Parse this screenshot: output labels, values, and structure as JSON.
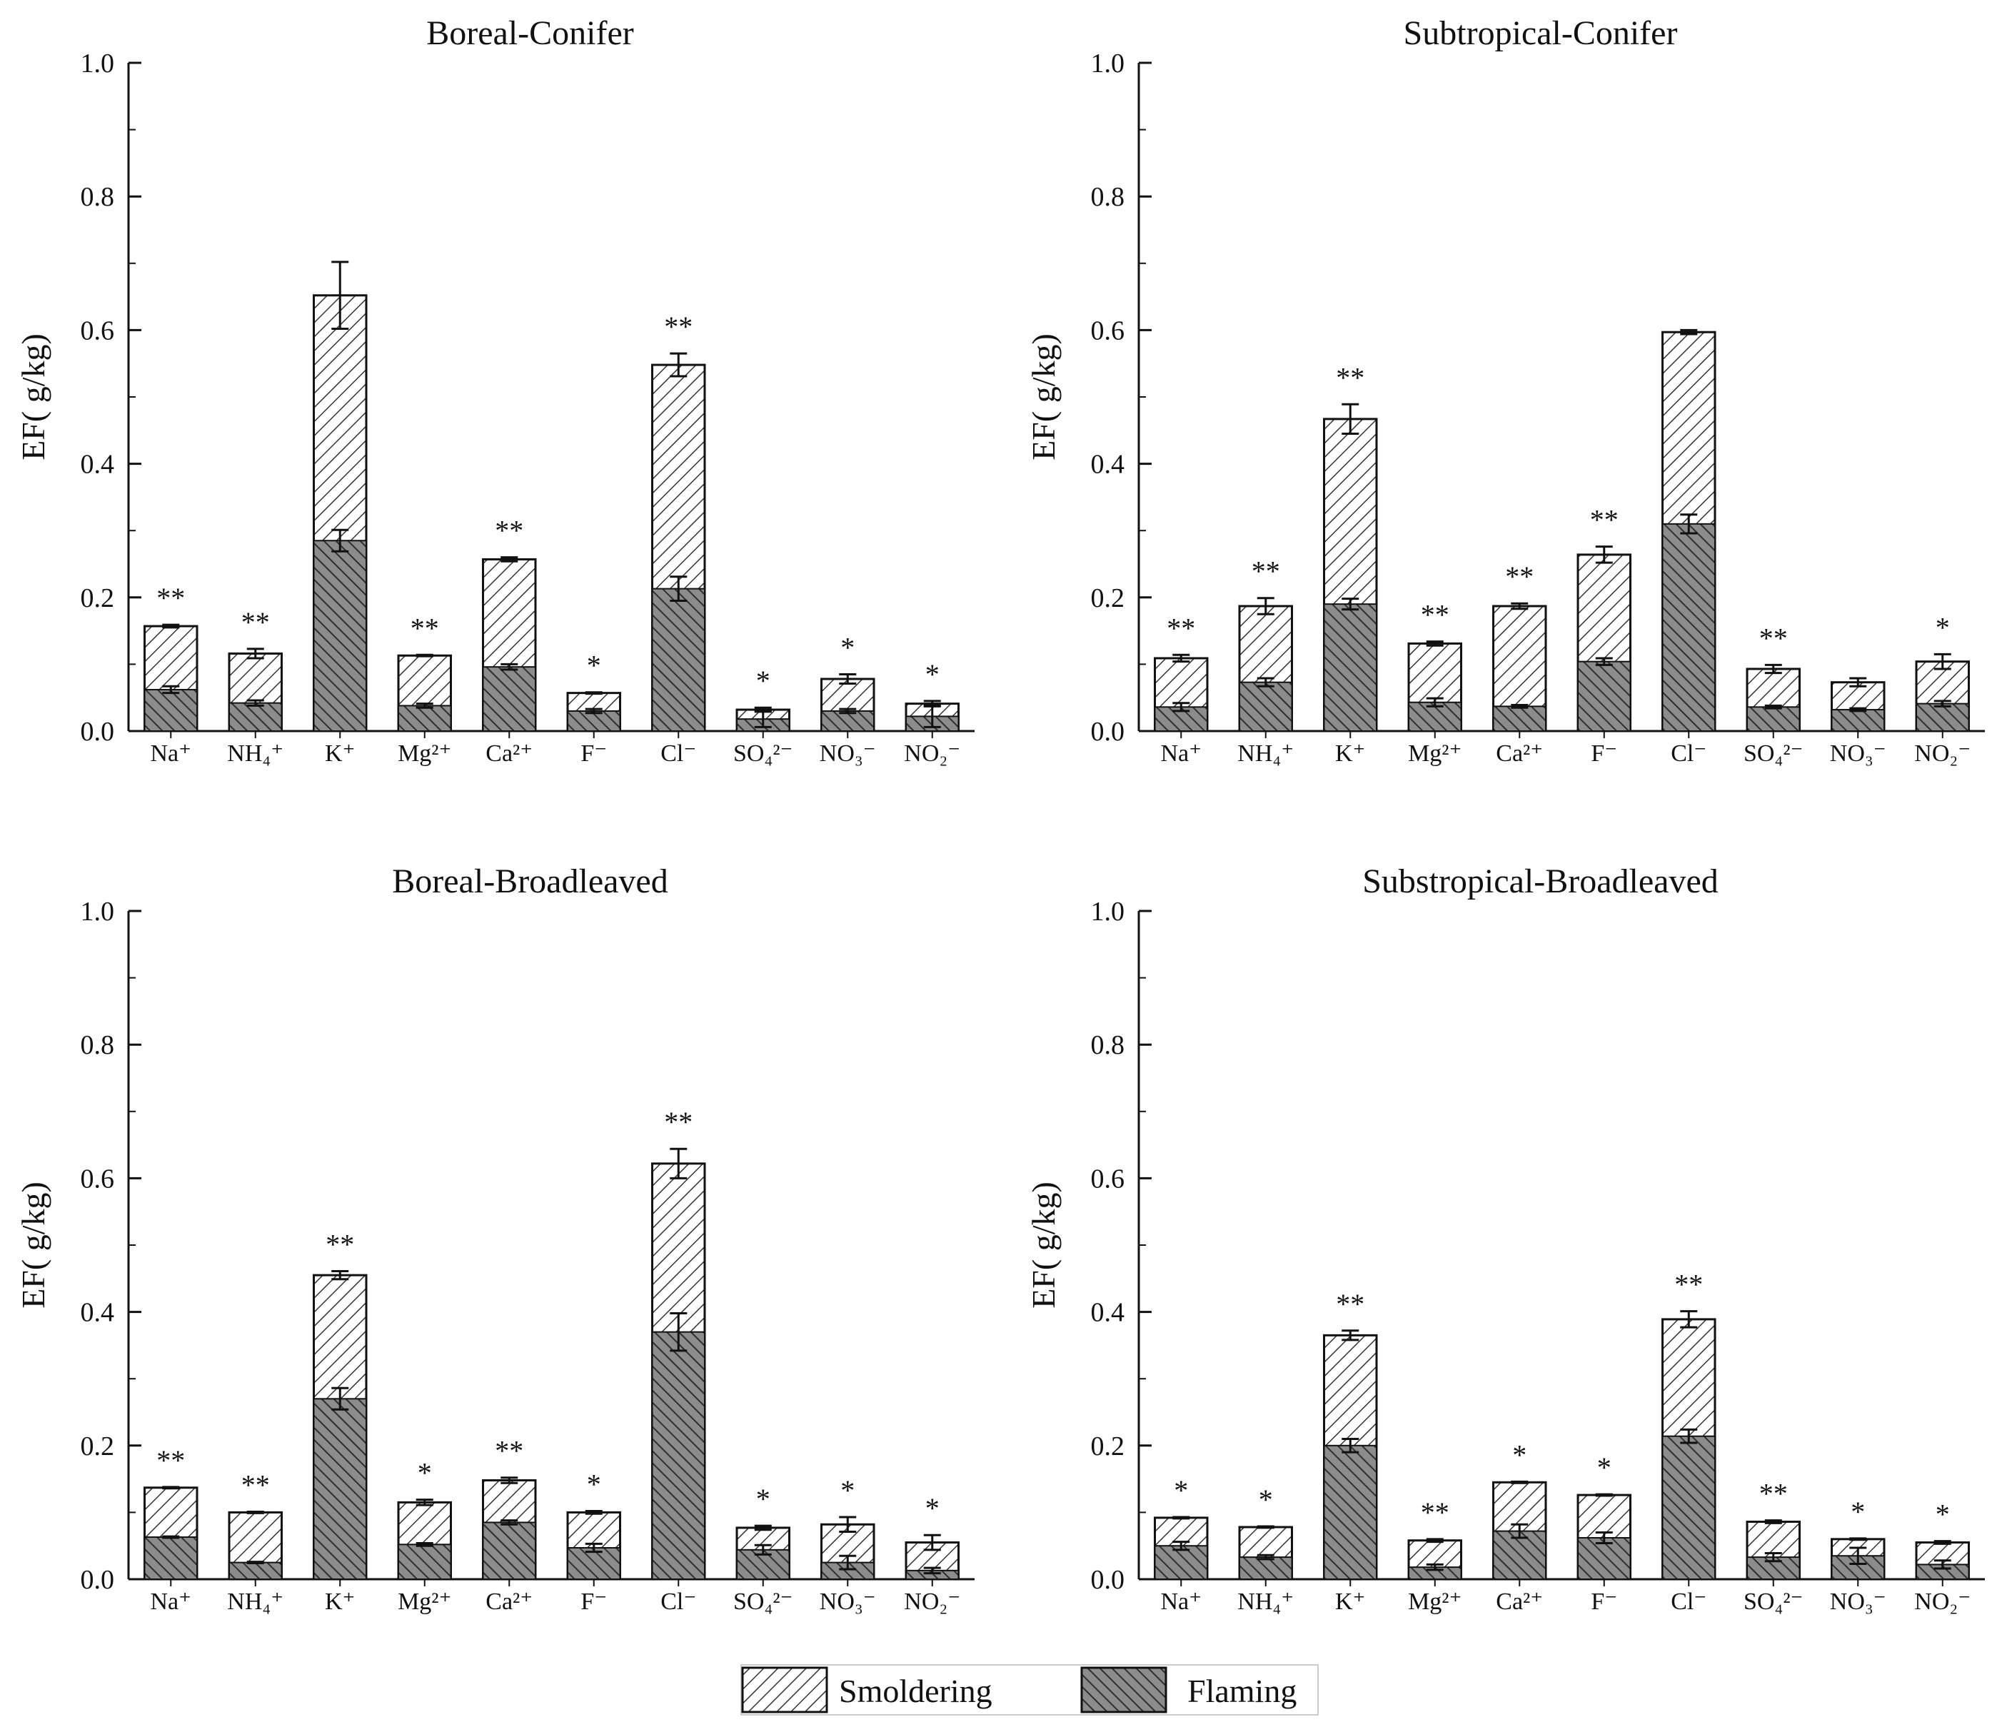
{
  "legend": {
    "smoldering_label": "Smoldering",
    "flaming_label": "Flaming"
  },
  "colors": {
    "axis": "#111111",
    "hatch": "#333333",
    "flaming_bg": "#8c8c8c",
    "smoldering_bg": "#ffffff"
  },
  "chart_data": [
    {
      "type": "bar",
      "stacked": true,
      "title": "Boreal-Conifer",
      "ylabel": "EF( g/kg)",
      "ylim": [
        0,
        1.0
      ],
      "yticks": [
        "0.0",
        "0.2",
        "0.4",
        "0.6",
        "0.8",
        "1.0"
      ],
      "categories": [
        "Na⁺",
        "NH₄⁺",
        "K⁺",
        "Mg²⁺",
        "Ca²⁺",
        "F⁻",
        "Cl⁻",
        "SO₄²⁻",
        "NO₃⁻",
        "NO₂⁻"
      ],
      "series": [
        {
          "name": "Flaming",
          "values": [
            0.062,
            0.042,
            0.285,
            0.038,
            0.096,
            0.03,
            0.213,
            0.018,
            0.03,
            0.022
          ],
          "errors": [
            0.005,
            0.004,
            0.016,
            0.003,
            0.004,
            0.003,
            0.018,
            0.012,
            0.003,
            0.016
          ]
        },
        {
          "name": "Smoldering",
          "values": [
            0.157,
            0.116,
            0.652,
            0.113,
            0.257,
            0.057,
            0.548,
            0.032,
            0.078,
            0.041
          ],
          "errors": [
            0.002,
            0.007,
            0.05,
            0.001,
            0.003,
            0.001,
            0.017,
            0.003,
            0.007,
            0.004
          ]
        }
      ],
      "significance": [
        "**",
        "**",
        "",
        "**",
        "**",
        "*",
        "**",
        "*",
        "*",
        "*"
      ]
    },
    {
      "type": "bar",
      "stacked": true,
      "title": "Subtropical-Conifer",
      "ylabel": "EF( g/kg)",
      "ylim": [
        0,
        1.0
      ],
      "yticks": [
        "0.0",
        "0.2",
        "0.4",
        "0.6",
        "0.8",
        "1.0"
      ],
      "categories": [
        "Na⁺",
        "NH₄⁺",
        "K⁺",
        "Mg²⁺",
        "Ca²⁺",
        "F⁻",
        "Cl⁻",
        "SO₄²⁻",
        "NO₃⁻",
        "NO₂⁻"
      ],
      "series": [
        {
          "name": "Flaming",
          "values": [
            0.036,
            0.073,
            0.19,
            0.043,
            0.037,
            0.104,
            0.31,
            0.036,
            0.032,
            0.041
          ],
          "errors": [
            0.006,
            0.006,
            0.008,
            0.006,
            0.002,
            0.005,
            0.014,
            0.002,
            0.002,
            0.004
          ]
        },
        {
          "name": "Smoldering",
          "values": [
            0.109,
            0.187,
            0.467,
            0.131,
            0.187,
            0.264,
            0.597,
            0.093,
            0.073,
            0.104
          ],
          "errors": [
            0.005,
            0.012,
            0.022,
            0.003,
            0.004,
            0.012,
            0.003,
            0.006,
            0.006,
            0.011
          ]
        }
      ],
      "significance": [
        "**",
        "**",
        "**",
        "**",
        "**",
        "**",
        "",
        "**",
        "",
        "*"
      ]
    },
    {
      "type": "bar",
      "stacked": true,
      "title": "Boreal-Broadleaved",
      "ylabel": "EF( g/kg)",
      "ylim": [
        0,
        1.0
      ],
      "yticks": [
        "0.0",
        "0.2",
        "0.4",
        "0.6",
        "0.8",
        "1.0"
      ],
      "categories": [
        "Na⁺",
        "NH₄⁺",
        "K⁺",
        "Mg²⁺",
        "Ca²⁺",
        "F⁻",
        "Cl⁻",
        "SO₄²⁻",
        "NO₃⁻",
        "NO₂⁻"
      ],
      "series": [
        {
          "name": "Flaming",
          "values": [
            0.063,
            0.025,
            0.27,
            0.052,
            0.085,
            0.047,
            0.37,
            0.044,
            0.025,
            0.013
          ],
          "errors": [
            0.001,
            0.001,
            0.016,
            0.002,
            0.003,
            0.006,
            0.028,
            0.007,
            0.01,
            0.004
          ]
        },
        {
          "name": "Smoldering",
          "values": [
            0.137,
            0.1,
            0.455,
            0.115,
            0.148,
            0.1,
            0.622,
            0.077,
            0.082,
            0.055
          ],
          "errors": [
            0.001,
            0.001,
            0.006,
            0.004,
            0.004,
            0.002,
            0.022,
            0.003,
            0.011,
            0.011
          ]
        }
      ],
      "significance": [
        "**",
        "**",
        "**",
        "*",
        "**",
        "*",
        "**",
        "*",
        "*",
        "*"
      ]
    },
    {
      "type": "bar",
      "stacked": true,
      "title": "Substropical-Broadleaved",
      "ylabel": "EF( g/kg)",
      "ylim": [
        0,
        1.0
      ],
      "yticks": [
        "0.0",
        "0.2",
        "0.4",
        "0.6",
        "0.8",
        "1.0"
      ],
      "categories": [
        "Na⁺",
        "NH₄⁺",
        "K⁺",
        "Mg²⁺",
        "Ca²⁺",
        "F⁻",
        "Cl⁻",
        "SO₄²⁻",
        "NO₃⁻",
        "NO₂⁻"
      ],
      "series": [
        {
          "name": "Flaming",
          "values": [
            0.05,
            0.033,
            0.2,
            0.018,
            0.072,
            0.062,
            0.214,
            0.033,
            0.035,
            0.022
          ],
          "errors": [
            0.006,
            0.003,
            0.01,
            0.004,
            0.01,
            0.008,
            0.01,
            0.006,
            0.012,
            0.006
          ]
        },
        {
          "name": "Smoldering",
          "values": [
            0.092,
            0.078,
            0.365,
            0.058,
            0.145,
            0.126,
            0.389,
            0.086,
            0.06,
            0.055
          ],
          "errors": [
            0.001,
            0.001,
            0.007,
            0.002,
            0.001,
            0.001,
            0.012,
            0.002,
            0.001,
            0.002
          ]
        }
      ],
      "significance": [
        "*",
        "*",
        "**",
        "**",
        "*",
        "*",
        "**",
        "**",
        "*",
        "*"
      ]
    }
  ]
}
